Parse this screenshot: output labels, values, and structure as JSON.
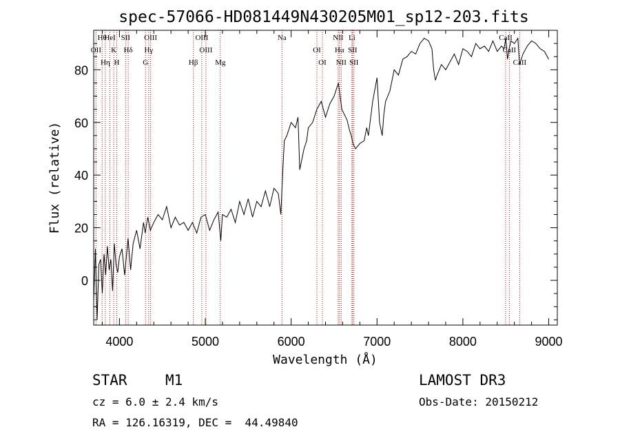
{
  "chart_data": {
    "type": "line",
    "title": "spec-57066-HD081449N430205M01_sp12-203.fits",
    "xlabel": "Wavelength (Å)",
    "ylabel": "Flux (relative)",
    "xlim": [
      3700,
      9100
    ],
    "ylim": [
      -17,
      95
    ],
    "xticks": [
      4000,
      5000,
      6000,
      7000,
      8000,
      9000
    ],
    "yticks": [
      0,
      20,
      40,
      60,
      80
    ],
    "series": [
      {
        "name": "spectrum",
        "x": [
          3700,
          3720,
          3740,
          3760,
          3780,
          3800,
          3820,
          3840,
          3860,
          3880,
          3900,
          3920,
          3940,
          3960,
          3980,
          4000,
          4030,
          4060,
          4100,
          4130,
          4160,
          4200,
          4240,
          4280,
          4300,
          4330,
          4360,
          4400,
          4450,
          4500,
          4550,
          4600,
          4650,
          4700,
          4750,
          4800,
          4850,
          4900,
          4950,
          5000,
          5050,
          5100,
          5150,
          5180,
          5200,
          5250,
          5300,
          5350,
          5400,
          5450,
          5500,
          5550,
          5600,
          5650,
          5700,
          5750,
          5800,
          5850,
          5880,
          5900,
          5920,
          5950,
          6000,
          6050,
          6080,
          6100,
          6150,
          6180,
          6200,
          6250,
          6300,
          6350,
          6400,
          6450,
          6500,
          6550,
          6570,
          6590,
          6620,
          6650,
          6680,
          6700,
          6720,
          6750,
          6800,
          6850,
          6880,
          6900,
          6950,
          7000,
          7030,
          7060,
          7080,
          7100,
          7150,
          7200,
          7250,
          7300,
          7350,
          7400,
          7450,
          7500,
          7550,
          7600,
          7640,
          7660,
          7680,
          7700,
          7750,
          7800,
          7850,
          7900,
          7950,
          8000,
          8050,
          8100,
          8150,
          8200,
          8250,
          8300,
          8350,
          8400,
          8450,
          8480,
          8500,
          8520,
          8540,
          8560,
          8600,
          8640,
          8660,
          8700,
          8750,
          8800,
          8850,
          8900,
          8950,
          9000
        ],
        "values": [
          -8,
          12,
          -15,
          6,
          8,
          -5,
          10,
          2,
          13,
          4,
          8,
          -4,
          14,
          6,
          3,
          9,
          12,
          2,
          16,
          4,
          14,
          19,
          12,
          22,
          18,
          24,
          19,
          22,
          25,
          23,
          28,
          20,
          24,
          21,
          22,
          19,
          22,
          18,
          24,
          25,
          19,
          23,
          26,
          15,
          25,
          24,
          27,
          22,
          30,
          25,
          31,
          24,
          30,
          28,
          34,
          28,
          35,
          33,
          25,
          40,
          53,
          55,
          60,
          58,
          62,
          42,
          50,
          53,
          58,
          60,
          65,
          68,
          62,
          67,
          70,
          75,
          70,
          65,
          63,
          61,
          57,
          55,
          52,
          50,
          52,
          53,
          58,
          55,
          68,
          77,
          60,
          55,
          63,
          68,
          72,
          80,
          78,
          84,
          85,
          87,
          86,
          90,
          92,
          91,
          88,
          80,
          76,
          78,
          82,
          80,
          83,
          86,
          82,
          88,
          87,
          85,
          90,
          88,
          89,
          87,
          91,
          87,
          89,
          88,
          92,
          84,
          88,
          91,
          90,
          92,
          82,
          86,
          89,
          91,
          90,
          88,
          87,
          84
        ]
      }
    ],
    "line_markers": [
      {
        "label": "Hθ",
        "wavelength": 3798
      },
      {
        "label": "OII",
        "wavelength": 3727
      },
      {
        "label": "Hη",
        "wavelength": 3835
      },
      {
        "label": "HeI",
        "wavelength": 3889
      },
      {
        "label": "K",
        "wavelength": 3934
      },
      {
        "label": "H",
        "wavelength": 3969
      },
      {
        "label": "SII",
        "wavelength": 4072
      },
      {
        "label": "Hδ",
        "wavelength": 4102
      },
      {
        "label": "G",
        "wavelength": 4304
      },
      {
        "label": "OIII",
        "wavelength": 4363
      },
      {
        "label": "Hγ",
        "wavelength": 4341
      },
      {
        "label": "Hβ",
        "wavelength": 4861
      },
      {
        "label": "OIII",
        "wavelength": 4959
      },
      {
        "label": "OIII",
        "wavelength": 5007
      },
      {
        "label": "Mg",
        "wavelength": 5175
      },
      {
        "label": "Na",
        "wavelength": 5893
      },
      {
        "label": "OI",
        "wavelength": 6300
      },
      {
        "label": "OI",
        "wavelength": 6364
      },
      {
        "label": "NII",
        "wavelength": 6548
      },
      {
        "label": "Hα",
        "wavelength": 6563
      },
      {
        "label": "NII",
        "wavelength": 6583
      },
      {
        "label": "Li",
        "wavelength": 6708
      },
      {
        "label": "SII",
        "wavelength": 6716
      },
      {
        "label": "SII",
        "wavelength": 6731
      },
      {
        "label": "CaII",
        "wavelength": 8498
      },
      {
        "label": "CaII",
        "wavelength": 8542
      },
      {
        "label": "CaII",
        "wavelength": 8662
      }
    ]
  },
  "info": {
    "class_label": "STAR",
    "subclass": "M1",
    "survey": "LAMOST DR3",
    "redshift": "cz = 6.0 ± 2.4 km/s",
    "obs_date": "Obs-Date: 20150212",
    "coords": "RA = 126.16319, DEC =  44.49840"
  },
  "colors": {
    "line": "#000000",
    "marker": "#c00000"
  }
}
